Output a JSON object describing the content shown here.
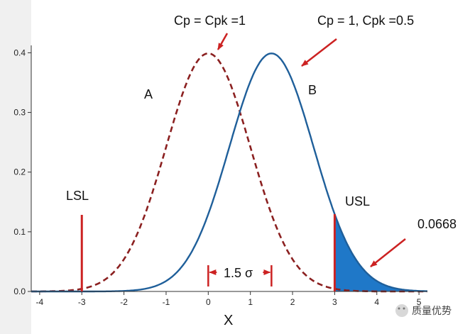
{
  "chart_data": {
    "type": "line",
    "title": "",
    "xlabel": "X",
    "ylabel": "",
    "xlim": [
      -4.2,
      5.2
    ],
    "ylim": [
      0,
      0.41
    ],
    "x_ticks": [
      -4,
      -3,
      -2,
      -1,
      0,
      1,
      2,
      3,
      4,
      5
    ],
    "y_ticks": [
      0.0,
      0.1,
      0.2,
      0.3,
      0.4
    ],
    "y_tick_labels": [
      "0.0",
      "0.1",
      "0.2",
      "0.3",
      "0.4"
    ],
    "grid": false,
    "series": [
      {
        "name": "A",
        "distribution": "normal",
        "mean": 0,
        "sd": 1,
        "style": "dashed",
        "color": "#8b2020"
      },
      {
        "name": "B",
        "distribution": "normal",
        "mean": 1.5,
        "sd": 1,
        "style": "solid",
        "color": "#1f5f9a"
      }
    ],
    "spec_limits": [
      {
        "label": "LSL",
        "x": -3
      },
      {
        "label": "USL",
        "x": 3
      }
    ],
    "shaded_tail": {
      "from": 3,
      "value_label": "0.0668",
      "color": "#1f78c8"
    },
    "shift_marker": {
      "from": 0,
      "to": 1.5,
      "label": "1.5 σ"
    },
    "annotations": {
      "curve_a": "Cp = Cpk =1",
      "curve_b": "Cp = 1, Cpk =0.5"
    },
    "colors": {
      "arrow": "#cc2222",
      "limit": "#cc2222"
    }
  },
  "watermark": {
    "text": "质量优势"
  }
}
